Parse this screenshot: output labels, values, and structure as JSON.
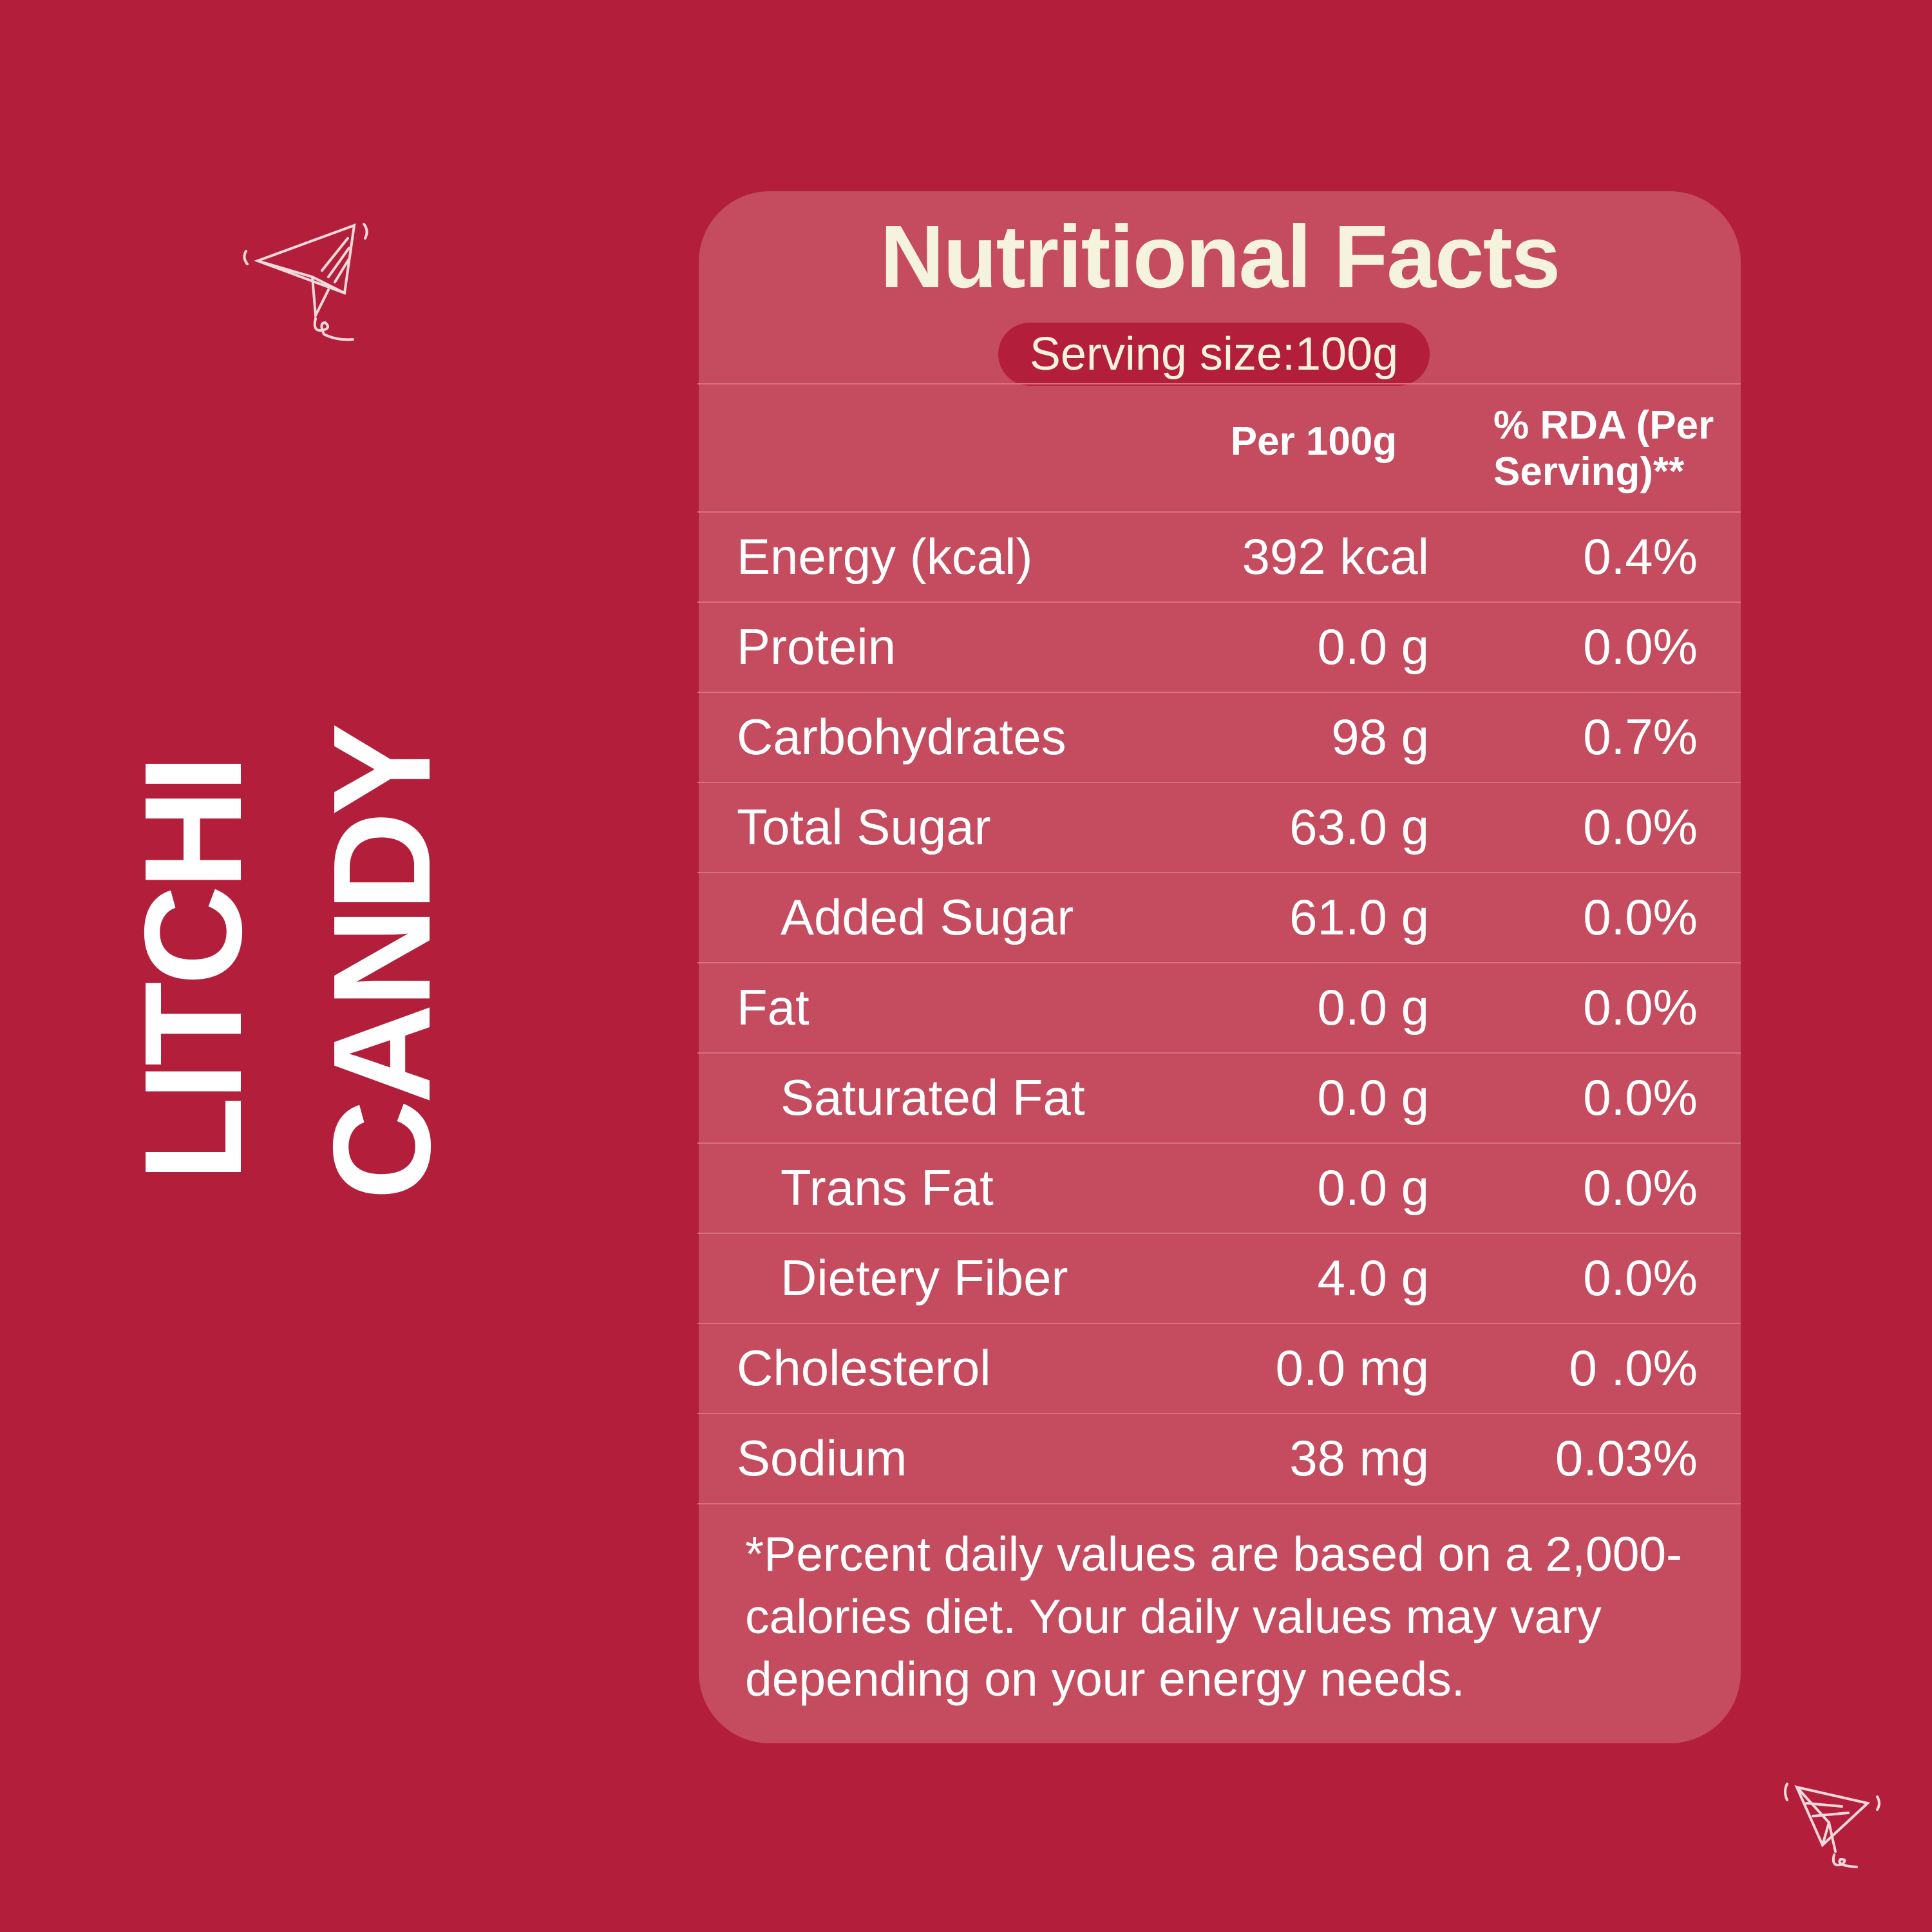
{
  "side_title": [
    "LITCHI",
    "CANDY"
  ],
  "header": {
    "title": "Nutritional Facts",
    "serving": "Serving size:100g"
  },
  "table": {
    "columns": [
      "Per 100g",
      "% RDA (Per Serving)**"
    ],
    "rows": [
      [
        "Energy (kcal)",
        "392 kcal",
        "0.4%"
      ],
      [
        "Protein",
        "0.0 g",
        "0.0%"
      ],
      [
        "Carbohydrates",
        "98 g",
        "0.7%"
      ],
      [
        "Total Sugar",
        "63.0 g",
        "0.0%"
      ],
      [
        "Added Sugar",
        "61.0 g",
        "0.0%"
      ],
      [
        "Fat",
        "0.0 g",
        "0.0%"
      ],
      [
        "Saturated Fat",
        "0.0 g",
        "0.0%"
      ],
      [
        "Trans Fat",
        "0.0 g",
        "0.0%"
      ],
      [
        "Dietery Fiber",
        "4.0 g",
        "0.0%"
      ],
      [
        "Cholesterol",
        "0.0 mg",
        "0 .0%"
      ],
      [
        "Sodium",
        "38 mg",
        "0.03%"
      ]
    ]
  },
  "footnote": "*Percent daily values are based on a 2,000-calories diet. Your daily values may vary depending on your energy needs."
}
